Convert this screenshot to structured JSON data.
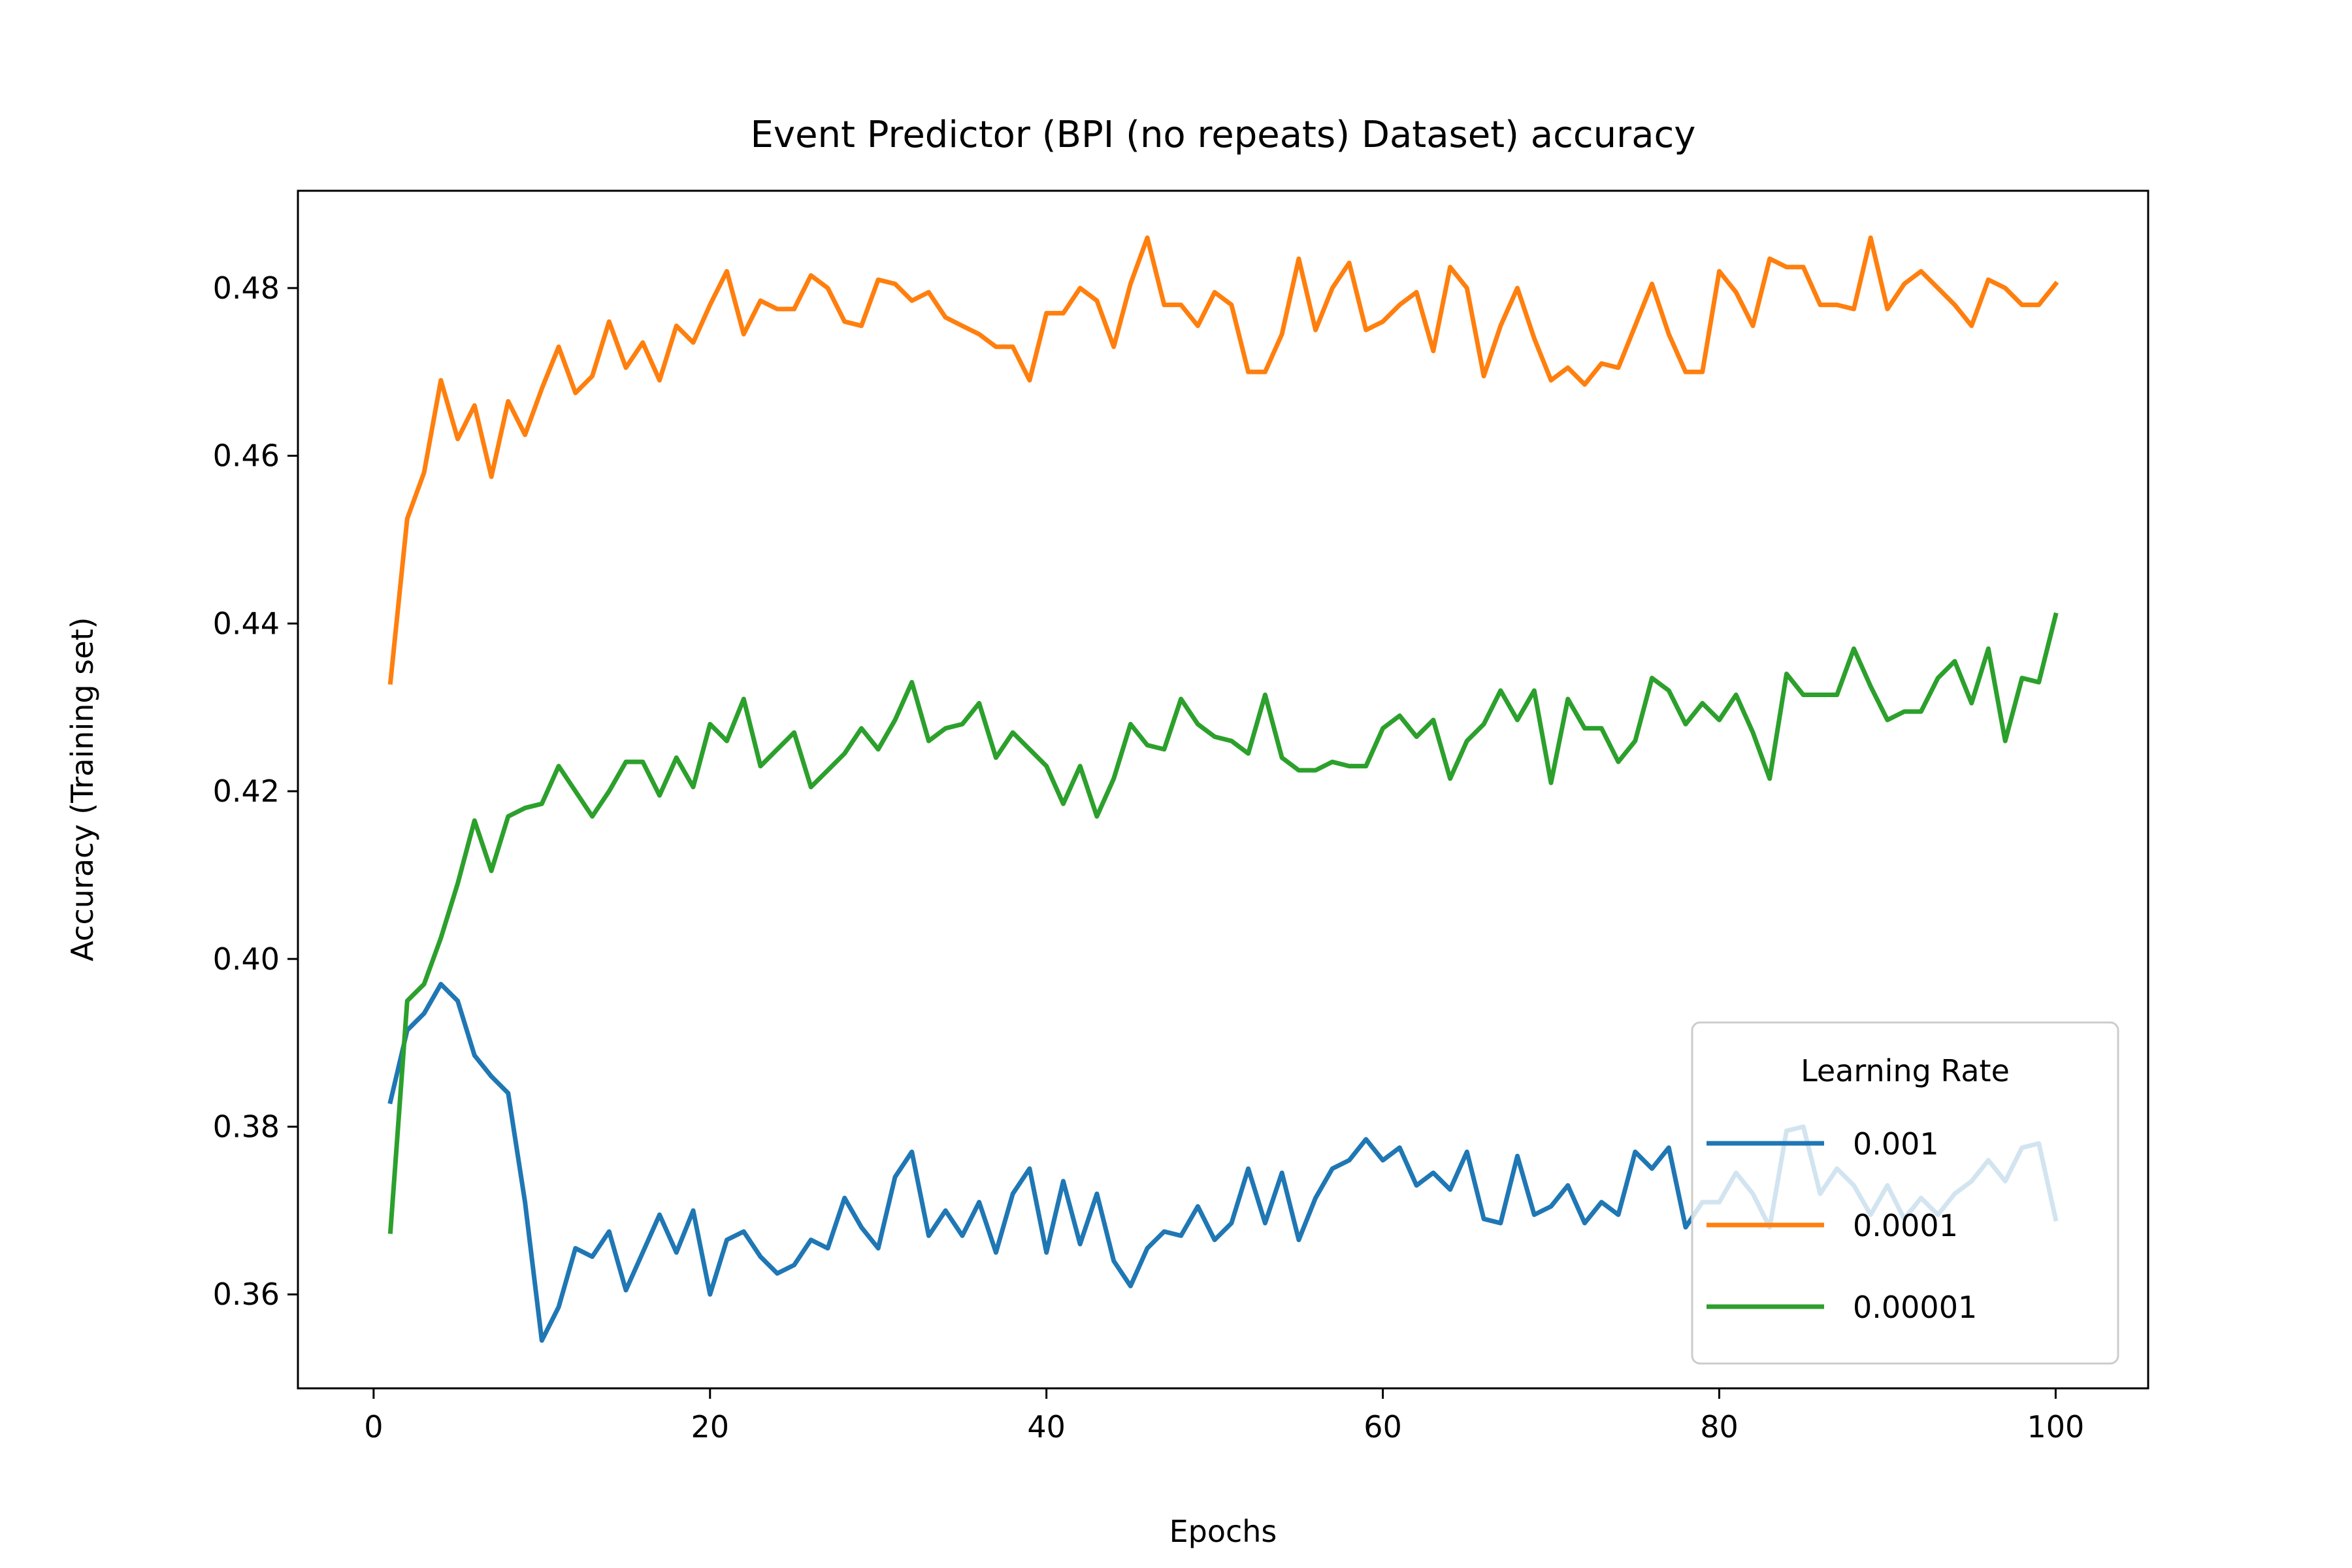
{
  "chart_data": {
    "type": "line",
    "title": "Event Predictor (BPI (no repeats) Dataset) accuracy",
    "xlabel": "Epochs",
    "ylabel": "Accuracy (Training set)",
    "xlim": [
      -4.5,
      105.5
    ],
    "ylim": [
      0.3488,
      0.4916
    ],
    "xticks": [
      0,
      20,
      40,
      60,
      80,
      100
    ],
    "yticks": [
      0.36,
      0.38,
      0.4,
      0.42,
      0.44,
      0.46,
      0.48
    ],
    "xtick_labels": [
      "0",
      "20",
      "40",
      "60",
      "80",
      "100"
    ],
    "ytick_labels": [
      "0.36",
      "0.38",
      "0.40",
      "0.42",
      "0.44",
      "0.46",
      "0.48"
    ],
    "grid": false,
    "legend": {
      "title": "Learning Rate",
      "position": "lower-right"
    },
    "x_start": 1,
    "series": [
      {
        "name": "0.001",
        "color": "#1f77b4",
        "values": [
          0.383,
          0.3915,
          0.3935,
          0.397,
          0.395,
          0.3885,
          0.386,
          0.384,
          0.371,
          0.3545,
          0.3585,
          0.3655,
          0.3645,
          0.3675,
          0.3605,
          0.365,
          0.3695,
          0.365,
          0.37,
          0.36,
          0.3665,
          0.3675,
          0.3645,
          0.3625,
          0.3635,
          0.3665,
          0.3655,
          0.3715,
          0.368,
          0.3655,
          0.374,
          0.377,
          0.367,
          0.37,
          0.367,
          0.371,
          0.365,
          0.372,
          0.375,
          0.365,
          0.3735,
          0.366,
          0.372,
          0.364,
          0.361,
          0.3655,
          0.3675,
          0.367,
          0.3705,
          0.3665,
          0.3685,
          0.375,
          0.3685,
          0.3745,
          0.3665,
          0.3715,
          0.375,
          0.376,
          0.3785,
          0.376,
          0.3775,
          0.373,
          0.3745,
          0.3725,
          0.377,
          0.369,
          0.3685,
          0.3765,
          0.3695,
          0.3705,
          0.373,
          0.3685,
          0.371,
          0.3695,
          0.377,
          0.375,
          0.3775,
          0.368,
          0.371,
          0.371,
          0.3745,
          0.372,
          0.368,
          0.3795,
          0.38,
          0.372,
          0.375,
          0.373,
          0.3695,
          0.373,
          0.369,
          0.3715,
          0.3695,
          0.372,
          0.3735,
          0.376,
          0.3735,
          0.3775,
          0.378,
          0.369
        ]
      },
      {
        "name": "0.0001",
        "color": "#ff7f0e",
        "values": [
          0.433,
          0.4525,
          0.458,
          0.469,
          0.462,
          0.466,
          0.4575,
          0.4665,
          0.4625,
          0.468,
          0.473,
          0.4675,
          0.4695,
          0.476,
          0.4705,
          0.4735,
          0.469,
          0.4755,
          0.4735,
          0.478,
          0.482,
          0.4745,
          0.4785,
          0.4775,
          0.4775,
          0.4815,
          0.48,
          0.476,
          0.4755,
          0.481,
          0.4805,
          0.4785,
          0.4795,
          0.4765,
          0.4755,
          0.4745,
          0.473,
          0.473,
          0.469,
          0.477,
          0.477,
          0.48,
          0.4785,
          0.473,
          0.4805,
          0.486,
          0.478,
          0.478,
          0.4755,
          0.4795,
          0.478,
          0.47,
          0.47,
          0.4745,
          0.4835,
          0.475,
          0.48,
          0.483,
          0.475,
          0.476,
          0.478,
          0.4795,
          0.4725,
          0.4825,
          0.48,
          0.4695,
          0.4755,
          0.48,
          0.474,
          0.469,
          0.4705,
          0.4685,
          0.471,
          0.4705,
          0.4755,
          0.4805,
          0.4745,
          0.47,
          0.47,
          0.482,
          0.4795,
          0.4755,
          0.4835,
          0.4825,
          0.4825,
          0.478,
          0.478,
          0.4775,
          0.486,
          0.4775,
          0.4805,
          0.482,
          0.48,
          0.478,
          0.4755,
          0.481,
          0.48,
          0.478,
          0.478,
          0.4805
        ]
      },
      {
        "name": "0.00001",
        "color": "#2ca02c",
        "values": [
          0.3675,
          0.395,
          0.397,
          0.4025,
          0.409,
          0.4165,
          0.4105,
          0.417,
          0.418,
          0.4185,
          0.423,
          0.42,
          0.417,
          0.42,
          0.4235,
          0.4235,
          0.4195,
          0.424,
          0.4205,
          0.428,
          0.426,
          0.431,
          0.423,
          0.425,
          0.427,
          0.4205,
          0.4225,
          0.4245,
          0.4275,
          0.425,
          0.4285,
          0.433,
          0.426,
          0.4275,
          0.428,
          0.4305,
          0.424,
          0.427,
          0.425,
          0.423,
          0.4185,
          0.423,
          0.417,
          0.4215,
          0.428,
          0.4255,
          0.425,
          0.431,
          0.428,
          0.4265,
          0.426,
          0.4245,
          0.4315,
          0.424,
          0.4225,
          0.4225,
          0.4235,
          0.423,
          0.423,
          0.4275,
          0.429,
          0.4265,
          0.4285,
          0.4215,
          0.426,
          0.428,
          0.432,
          0.4285,
          0.432,
          0.421,
          0.431,
          0.4275,
          0.4275,
          0.4235,
          0.426,
          0.4335,
          0.432,
          0.428,
          0.4305,
          0.4285,
          0.4315,
          0.427,
          0.4215,
          0.434,
          0.4315,
          0.4315,
          0.4315,
          0.437,
          0.4325,
          0.4285,
          0.4295,
          0.4295,
          0.4335,
          0.4355,
          0.4305,
          0.437,
          0.426,
          0.4335,
          0.433,
          0.441
        ]
      }
    ]
  }
}
